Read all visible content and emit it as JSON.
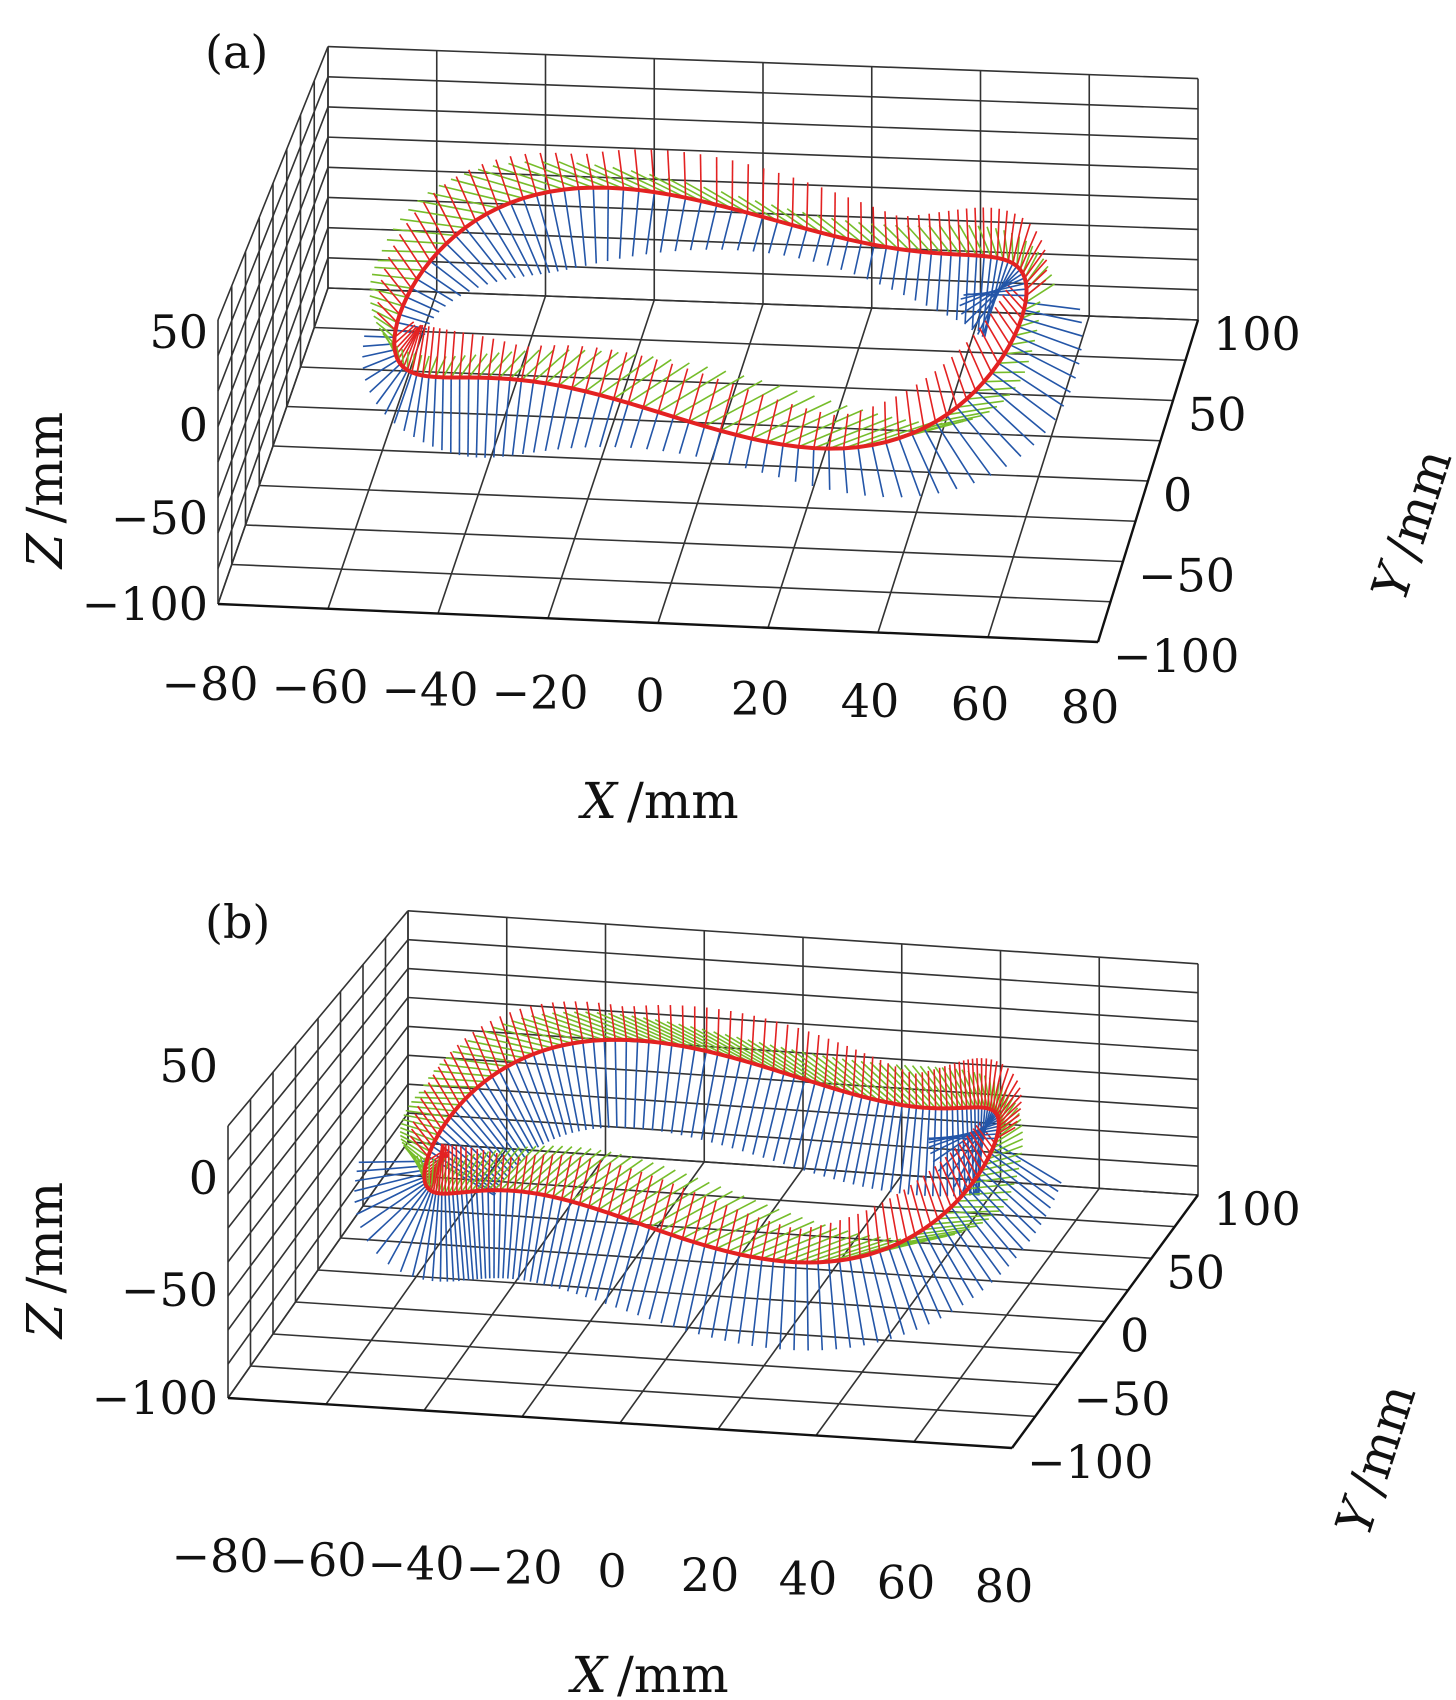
{
  "colors": {
    "frame_vectors": "#2456a8",
    "tangent_vectors": "#e32222",
    "normal_vectors": "#76bd2a",
    "grid": "#333333",
    "background": "#ffffff"
  },
  "chart_data": [
    {
      "type": "3d-vector-field",
      "panel_label": "(a)",
      "xlabel_var": "X",
      "xlabel_unit": "/mm",
      "ylabel_var": "Y",
      "ylabel_unit": "/mm",
      "zlabel_var": "Z",
      "zlabel_unit": "/mm",
      "xlim": [
        -80,
        80
      ],
      "ylim": [
        -100,
        100
      ],
      "zlim": [
        -100,
        100
      ],
      "x_ticks": [
        "−80",
        "−60",
        "−40",
        "−20",
        "0",
        "20",
        "40",
        "60",
        "80"
      ],
      "y_ticks": [
        "−100",
        "−50",
        "0",
        "50",
        "100"
      ],
      "z_ticks": [
        "−100",
        "−50",
        "0",
        "50"
      ],
      "grid": true,
      "series": [
        {
          "color_key": "frame_vectors"
        },
        {
          "color_key": "tangent_vectors"
        },
        {
          "color_key": "normal_vectors"
        }
      ]
    },
    {
      "type": "3d-vector-field",
      "panel_label": "(b)",
      "xlabel_var": "X",
      "xlabel_unit": "/mm",
      "ylabel_var": "Y",
      "ylabel_unit": "/mm",
      "zlabel_var": "Z",
      "zlabel_unit": "/mm",
      "xlim": [
        -80,
        80
      ],
      "ylim": [
        -100,
        100
      ],
      "zlim": [
        -100,
        100
      ],
      "x_ticks": [
        "−80",
        "−60",
        "−40",
        "−20",
        "0",
        "20",
        "40",
        "60",
        "80"
      ],
      "y_ticks": [
        "−100",
        "−50",
        "0",
        "50",
        "100"
      ],
      "z_ticks": [
        "−100",
        "−50",
        "0",
        "50"
      ],
      "grid": true,
      "series": [
        {
          "color_key": "frame_vectors"
        },
        {
          "color_key": "tangent_vectors"
        },
        {
          "color_key": "normal_vectors"
        }
      ]
    }
  ]
}
